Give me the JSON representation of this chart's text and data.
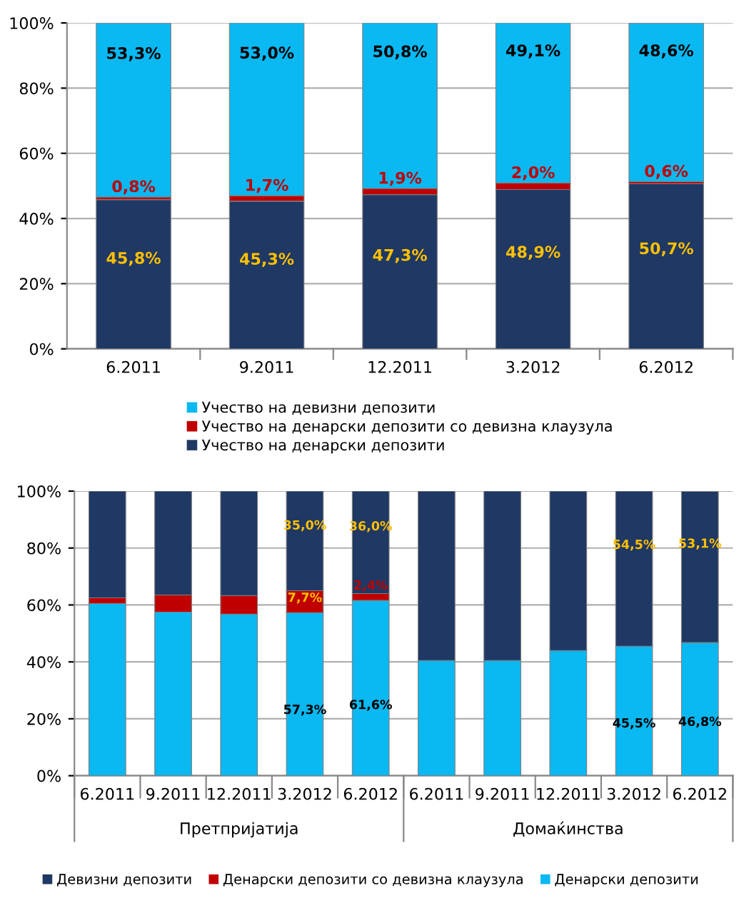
{
  "chart_data": [
    {
      "type": "bar",
      "stacked": true,
      "categories": [
        "6.2011",
        "9.2011",
        "12.2011",
        "3.2012",
        "6.2012"
      ],
      "ylim": [
        0,
        100
      ],
      "yticks": [
        {
          "value": 0,
          "label": "0%"
        },
        {
          "value": 20,
          "label": "20%"
        },
        {
          "value": 40,
          "label": "40%"
        },
        {
          "value": 60,
          "label": "60%"
        },
        {
          "value": 80,
          "label": "80%"
        },
        {
          "value": 100,
          "label": "100%"
        }
      ],
      "grid": "y",
      "legend": "bottom",
      "series": [
        {
          "name": "Учество на денарски депозити",
          "color": "#1f3864",
          "values": [
            45.8,
            45.3,
            47.3,
            48.9,
            50.7
          ],
          "value_labels": [
            "45,8%",
            "45,3%",
            "47,3%",
            "48,9%",
            "50,7%"
          ]
        },
        {
          "name": "Учество на денарски депозити со девизна клаузула",
          "color": "#c00000",
          "values": [
            0.8,
            1.7,
            1.9,
            2.0,
            0.6
          ],
          "value_labels": [
            "0,8%",
            "1,7%",
            "1,9%",
            "2,0%",
            "0,6%"
          ]
        },
        {
          "name": "Учество на девизни депозити",
          "color": "#0ab8f2",
          "values": [
            53.3,
            53.0,
            50.8,
            49.1,
            48.6
          ],
          "value_labels": [
            "53,3%",
            "53,0%",
            "50,8%",
            "49,1%",
            "48,6%"
          ]
        }
      ]
    },
    {
      "type": "bar",
      "stacked": true,
      "categories": [
        "6.2011",
        "9.2011",
        "12.2011",
        "3.2012",
        "6.2012",
        "6.2011",
        "9.2011",
        "12.2011",
        "3.2012",
        "6.2012"
      ],
      "annotations": [
        "Претпријатија",
        "Домаќинства"
      ],
      "ylim": [
        0,
        100
      ],
      "yticks": [
        {
          "value": 0,
          "label": "0%"
        },
        {
          "value": 20,
          "label": "20%"
        },
        {
          "value": 40,
          "label": "40%"
        },
        {
          "value": 60,
          "label": "60%"
        },
        {
          "value": 80,
          "label": "80%"
        },
        {
          "value": 100,
          "label": "100%"
        }
      ],
      "grid": "y",
      "legend": "bottom",
      "series": [
        {
          "name": "Денарски депозити",
          "color": "#0ab8f2",
          "values": [
            60.5,
            57.5,
            56.8,
            57.3,
            61.6,
            40.5,
            40.5,
            44.0,
            45.5,
            46.8
          ],
          "value_labels": [
            null,
            null,
            null,
            "57,3%",
            "61,6%",
            null,
            null,
            null,
            "45,5%",
            "46,8%"
          ]
        },
        {
          "name": "Денарски депозити со девизна клаузула",
          "color": "#c00000",
          "values": [
            2.0,
            6.0,
            6.5,
            7.7,
            2.4,
            null,
            null,
            null,
            null,
            null
          ],
          "value_labels": [
            null,
            null,
            null,
            "7,7%",
            "2,4%",
            null,
            null,
            null,
            null,
            null
          ]
        },
        {
          "name": "Девизни депозити",
          "color": "#1f3864",
          "values": [
            37.5,
            36.5,
            36.7,
            35.0,
            36.0,
            59.5,
            59.5,
            56.0,
            54.5,
            53.1
          ],
          "value_labels": [
            null,
            null,
            null,
            "35,0%",
            "36,0%",
            null,
            null,
            null,
            "54,5%",
            "53,1%"
          ]
        }
      ]
    }
  ]
}
